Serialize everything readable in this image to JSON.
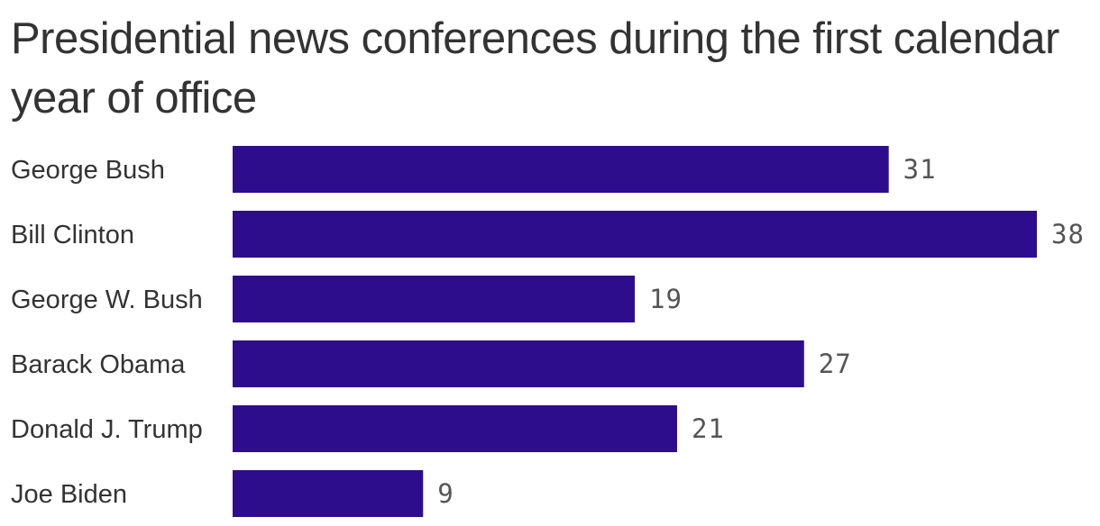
{
  "title": "Presidential news conferences during the first calendar year of office",
  "colors": {
    "bar": "#2e0d8d",
    "text": "#333333",
    "value_text": "#555555"
  },
  "chart_data": {
    "type": "bar",
    "orientation": "horizontal",
    "title": "Presidential news conferences during the first calendar year of office",
    "categories": [
      "George Bush",
      "Bill Clinton",
      "George W. Bush",
      "Barack Obama",
      "Donald J. Trump",
      "Joe Biden"
    ],
    "values": [
      31,
      38,
      19,
      27,
      21,
      9
    ],
    "data_labels": [
      "31",
      "38",
      "19",
      "27",
      "21",
      "9"
    ],
    "xlabel": "",
    "ylabel": "",
    "xlim": [
      0,
      38
    ],
    "grid": false,
    "legend": "none"
  }
}
